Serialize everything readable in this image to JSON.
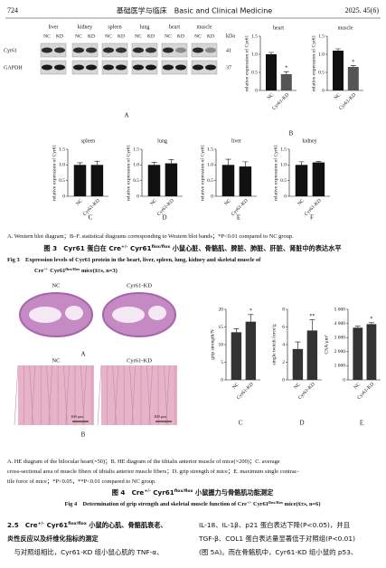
{
  "header": {
    "page": "724",
    "journal": "基础医学与临床　Basic and Clinical Medicine",
    "issue": "2025. 45(6)"
  },
  "figure3": {
    "blot": {
      "tissues": [
        "liver",
        "kidney",
        "spleen",
        "lung",
        "heart",
        "muscle"
      ],
      "lanes": [
        "NC",
        "KD"
      ],
      "rows": [
        "Cyr61",
        "GAPDH"
      ],
      "kda_label": "kDa",
      "kda": [
        "41",
        "37"
      ]
    },
    "panel_labels": [
      "A",
      "B",
      "C",
      "D",
      "E",
      "F"
    ],
    "charts": [
      {
        "type": "bar",
        "title": "heart",
        "ylabel": "relative expression of Cyr61",
        "categories": [
          "NC",
          "Cyr61-KD"
        ],
        "values": [
          1.0,
          0.45
        ],
        "errors": [
          0.05,
          0.07
        ],
        "annotations": [
          null,
          "*"
        ],
        "colors": [
          "#111111",
          "#555555"
        ],
        "ylim": [
          0,
          1.5
        ],
        "yticks": [
          0,
          0.5,
          {
            "value": 1,
            "label": "1.0"
          },
          {
            "value": 1.5,
            "label": "1.5"
          }
        ]
      },
      {
        "type": "bar",
        "title": "muscle",
        "ylabel": "relative expression of Cyr61",
        "categories": [
          "NC",
          "Cyr61-KD"
        ],
        "values": [
          1.1,
          0.65
        ],
        "errors": [
          0.05,
          0.04
        ],
        "annotations": [
          null,
          "*"
        ],
        "colors": [
          "#111111",
          "#555555"
        ],
        "ylim": [
          0,
          1.5
        ],
        "yticks": [
          0,
          0.5,
          {
            "value": 1,
            "label": "1.0"
          },
          {
            "value": 1.5,
            "label": "1.5"
          }
        ]
      },
      {
        "type": "bar",
        "title": "spleen",
        "ylabel": "relative expression of Cyr61",
        "categories": [
          "NC",
          "Cyr61-KD"
        ],
        "values": [
          1.0,
          1.0
        ],
        "errors": [
          0.07,
          0.12
        ],
        "annotations": [
          null,
          null
        ],
        "colors": [
          "#111111",
          "#111111"
        ],
        "ylim": [
          0,
          1.5
        ],
        "yticks": [
          0,
          0.5,
          {
            "value": 1,
            "label": "1.0"
          },
          {
            "value": 1.5,
            "label": "1.5"
          }
        ]
      },
      {
        "type": "bar",
        "title": "lung",
        "ylabel": "relative expression of Cyr61",
        "categories": [
          "NC",
          "Cyr61-KD"
        ],
        "values": [
          1.0,
          1.05
        ],
        "errors": [
          0.08,
          0.12
        ],
        "annotations": [
          null,
          null
        ],
        "colors": [
          "#111111",
          "#111111"
        ],
        "ylim": [
          0,
          1.5
        ],
        "yticks": [
          0,
          0.5,
          {
            "value": 1,
            "label": "1.0"
          },
          {
            "value": 1.5,
            "label": "1.5"
          }
        ]
      },
      {
        "type": "bar",
        "title": "liver",
        "ylabel": "relative expression of Cyr61",
        "categories": [
          "NC",
          "Cyr61-KD"
        ],
        "values": [
          1.0,
          0.95
        ],
        "errors": [
          0.18,
          0.15
        ],
        "annotations": [
          null,
          null
        ],
        "colors": [
          "#111111",
          "#111111"
        ],
        "ylim": [
          0,
          1.5
        ],
        "yticks": [
          0,
          0.5,
          {
            "value": 1,
            "label": "1.0"
          },
          {
            "value": 1.5,
            "label": "1.5"
          }
        ]
      },
      {
        "type": "bar",
        "title": "kidney",
        "ylabel": "relative expression of Cyr61",
        "categories": [
          "NC",
          "Cyr61-KD"
        ],
        "values": [
          1.0,
          1.08
        ],
        "errors": [
          0.1,
          0.03
        ],
        "annotations": [
          null,
          null
        ],
        "colors": [
          "#111111",
          "#111111"
        ],
        "ylim": [
          0,
          1.5
        ],
        "yticks": [
          0,
          0.5,
          {
            "value": 1,
            "label": "1.0"
          },
          {
            "value": 1.5,
            "label": "1.5"
          }
        ]
      }
    ],
    "captions": [
      {
        "align": "left",
        "style": "cap",
        "segments": [
          "A. Western blot diagram；B–F. statistical diagrams corresponding to Western blot bands；*P<0.01 compared to NC group."
        ]
      },
      {
        "align": "center",
        "style": "cn",
        "segments": [
          "图 3　Cyr61 蛋白在 Cre",
          {
            "sup": "+/-"
          },
          " Cyr61",
          {
            "sup": "flox/flox"
          },
          " 小鼠心脏、骨骼肌、脾脏、肺脏、肝脏、肾脏中的表达水平"
        ]
      },
      {
        "align": "left",
        "style": "capb",
        "segments": [
          "Fig 3　Expression levels of Cyr61 protein in the heart, liver, spleen, lung, kidney and skeletal muscle of"
        ]
      },
      {
        "align": "left",
        "style": "capb2",
        "segments": [
          "Cre",
          {
            "sup": "+/-"
          },
          " Cyr61",
          {
            "sup": "flox/flox"
          },
          " mice(x̄±s, n=3)"
        ]
      }
    ]
  },
  "figure4": {
    "images": {
      "heart_labels": [
        "NC",
        "Cyr61-KD"
      ],
      "muscle_labels": [
        "NC",
        "Cyr61-KD"
      ],
      "scale_bars": [
        "100 μm",
        "100 μm"
      ]
    },
    "panel_labels": [
      "A",
      "B",
      "C",
      "D",
      "E"
    ],
    "charts": [
      {
        "type": "bar",
        "ylabel": "grip strength/N",
        "categories": [
          "NC",
          "Cyr61-KD"
        ],
        "values": [
          13.5,
          16.5
        ],
        "errors": [
          1.0,
          2.0
        ],
        "annotations": [
          null,
          "*"
        ],
        "colors": [
          "#333333",
          "#333333"
        ],
        "ylim": [
          0,
          20
        ],
        "yticks": [
          0,
          5,
          10,
          15,
          20
        ]
      },
      {
        "type": "bar",
        "ylabel": "single twitch force/g",
        "categories": [
          "NC",
          "Cyr61-KD"
        ],
        "values": [
          3.5,
          5.6
        ],
        "errors": [
          0.8,
          1.2
        ],
        "annotations": [
          null,
          "**"
        ],
        "colors": [
          "#333333",
          "#333333"
        ],
        "ylim": [
          0,
          8
        ],
        "yticks": [
          0,
          2,
          4,
          6,
          8
        ]
      },
      {
        "type": "bar",
        "ylabel": "CSA/μm²",
        "categories": [
          "NC",
          "Cyr61-KD"
        ],
        "values": [
          3700,
          3950
        ],
        "errors": [
          100,
          100
        ],
        "annotations": [
          null,
          "*"
        ],
        "colors": [
          "#333333",
          "#333333"
        ],
        "ylim": [
          0,
          5000
        ],
        "yticks": [
          0,
          {
            "value": 1000,
            "label": "1 000"
          },
          {
            "value": 2000,
            "label": "2 000"
          },
          {
            "value": 3000,
            "label": "3 000"
          },
          {
            "value": 4000,
            "label": "4 000"
          },
          {
            "value": 5000,
            "label": "5 000"
          }
        ]
      }
    ],
    "captions": [
      {
        "align": "left",
        "style": "cap",
        "segments": [
          "A. HE diagram of the bilocular heart(×50)；B. HE diagram of the tibialis anterior muscle of mice(×200)；C. average"
        ]
      },
      {
        "align": "left",
        "style": "cap",
        "segments": [
          "cross-sectional area of muscle fibers of tibialis anterior muscle fibers；D. grip strength of mice；E. maximum single contrac-"
        ]
      },
      {
        "align": "left",
        "style": "cap",
        "segments": [
          "tile force of mice；*P<0.05，**P<0.01 compared to NC group."
        ]
      },
      {
        "align": "center",
        "style": "cn",
        "segments": [
          "图 4　Cre",
          {
            "sup": "+/-"
          },
          " Cyr61",
          {
            "sup": "flox/flox"
          },
          " 小鼠握力与骨骼肌功能测定"
        ]
      },
      {
        "align": "center",
        "style": "capb",
        "segments": [
          "Fig 4　Determination of grip strength and skeletal muscle function of Cre",
          {
            "sup": "+/-"
          },
          " Cyr61",
          {
            "sup": "flox/flox"
          },
          " mice(x̄±s, n=6)"
        ]
      }
    ]
  },
  "body": {
    "left": [
      {
        "segments": [
          "2.5　Cre",
          {
            "sup": "+/-"
          },
          " Cyr61",
          {
            "sup": "flox/flox"
          },
          " 小鼠的心肌、骨骼肌衰老、"
        ]
      },
      {
        "segments": [
          "炎性反应以及纤维化指标的测定"
        ]
      },
      {
        "segments": [
          "　与对照组相比，Cyr61-KD 组小鼠心肌的 TNF-α、"
        ]
      }
    ],
    "right": [
      {
        "segments": [
          "IL-18、IL-1β、p21 蛋白表达下降(P<0.05)，并且"
        ]
      },
      {
        "segments": [
          "TGF-β、COL1 蛋白表达量显著低于对照组(P<0.01)"
        ]
      },
      {
        "segments": [
          "(图 5A)。而在骨骼肌中，Cyr61-KD 组小鼠的 p53、"
        ]
      }
    ]
  }
}
